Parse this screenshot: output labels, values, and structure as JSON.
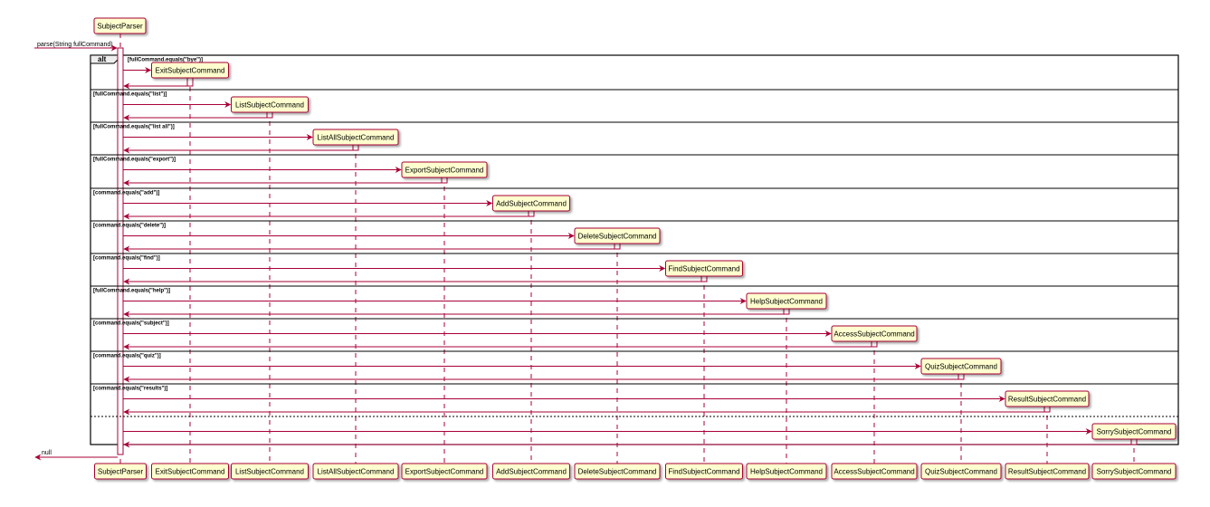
{
  "top_participant": "SubjectParser",
  "participants": [
    "SubjectParser",
    "ExitSubjectCommand",
    "ListSubjectCommand",
    "ListAllSubjectCommand",
    "ExportSubjectCommand",
    "AddSubjectCommand",
    "DeleteSubjectCommand",
    "FindSubjectCommand",
    "HelpSubjectCommand",
    "AccessSubjectCommand",
    "QuizSubjectCommand",
    "ResultSubjectCommand",
    "SorrySubjectCommand"
  ],
  "incoming_message": "parse(String fullCommand)",
  "return_message": "null",
  "alt_label": "alt",
  "alt_sections": [
    {
      "guard": "[fullCommand.equals(\"bye\")]",
      "target": "ExitSubjectCommand"
    },
    {
      "guard": "[fullCommand.equals(\"list\")]",
      "target": "ListSubjectCommand"
    },
    {
      "guard": "[fullCommand.equals(\"list all\")]",
      "target": "ListAllSubjectCommand"
    },
    {
      "guard": "[fullCommand.equals(\"export\")]",
      "target": "ExportSubjectCommand"
    },
    {
      "guard": "[command.equals(\"add\")]",
      "target": "AddSubjectCommand"
    },
    {
      "guard": "[command.equals(\"delete\")]",
      "target": "DeleteSubjectCommand"
    },
    {
      "guard": "[command.equals(\"find\")]",
      "target": "FindSubjectCommand"
    },
    {
      "guard": "[fullCommand.equals(\"help\")]",
      "target": "HelpSubjectCommand"
    },
    {
      "guard": "[command.equals(\"subject\")]",
      "target": "AccessSubjectCommand"
    },
    {
      "guard": "[command.equals(\"quiz\")]",
      "target": "QuizSubjectCommand"
    },
    {
      "guard": "[command.equals(\"results\")]",
      "target": "ResultSubjectCommand"
    },
    {
      "guard": "",
      "target": "SorrySubjectCommand"
    }
  ],
  "colors": {
    "arrow": "#a80036",
    "box_fill": "#fefece",
    "box_border": "#a80036",
    "frame": "#000000"
  }
}
